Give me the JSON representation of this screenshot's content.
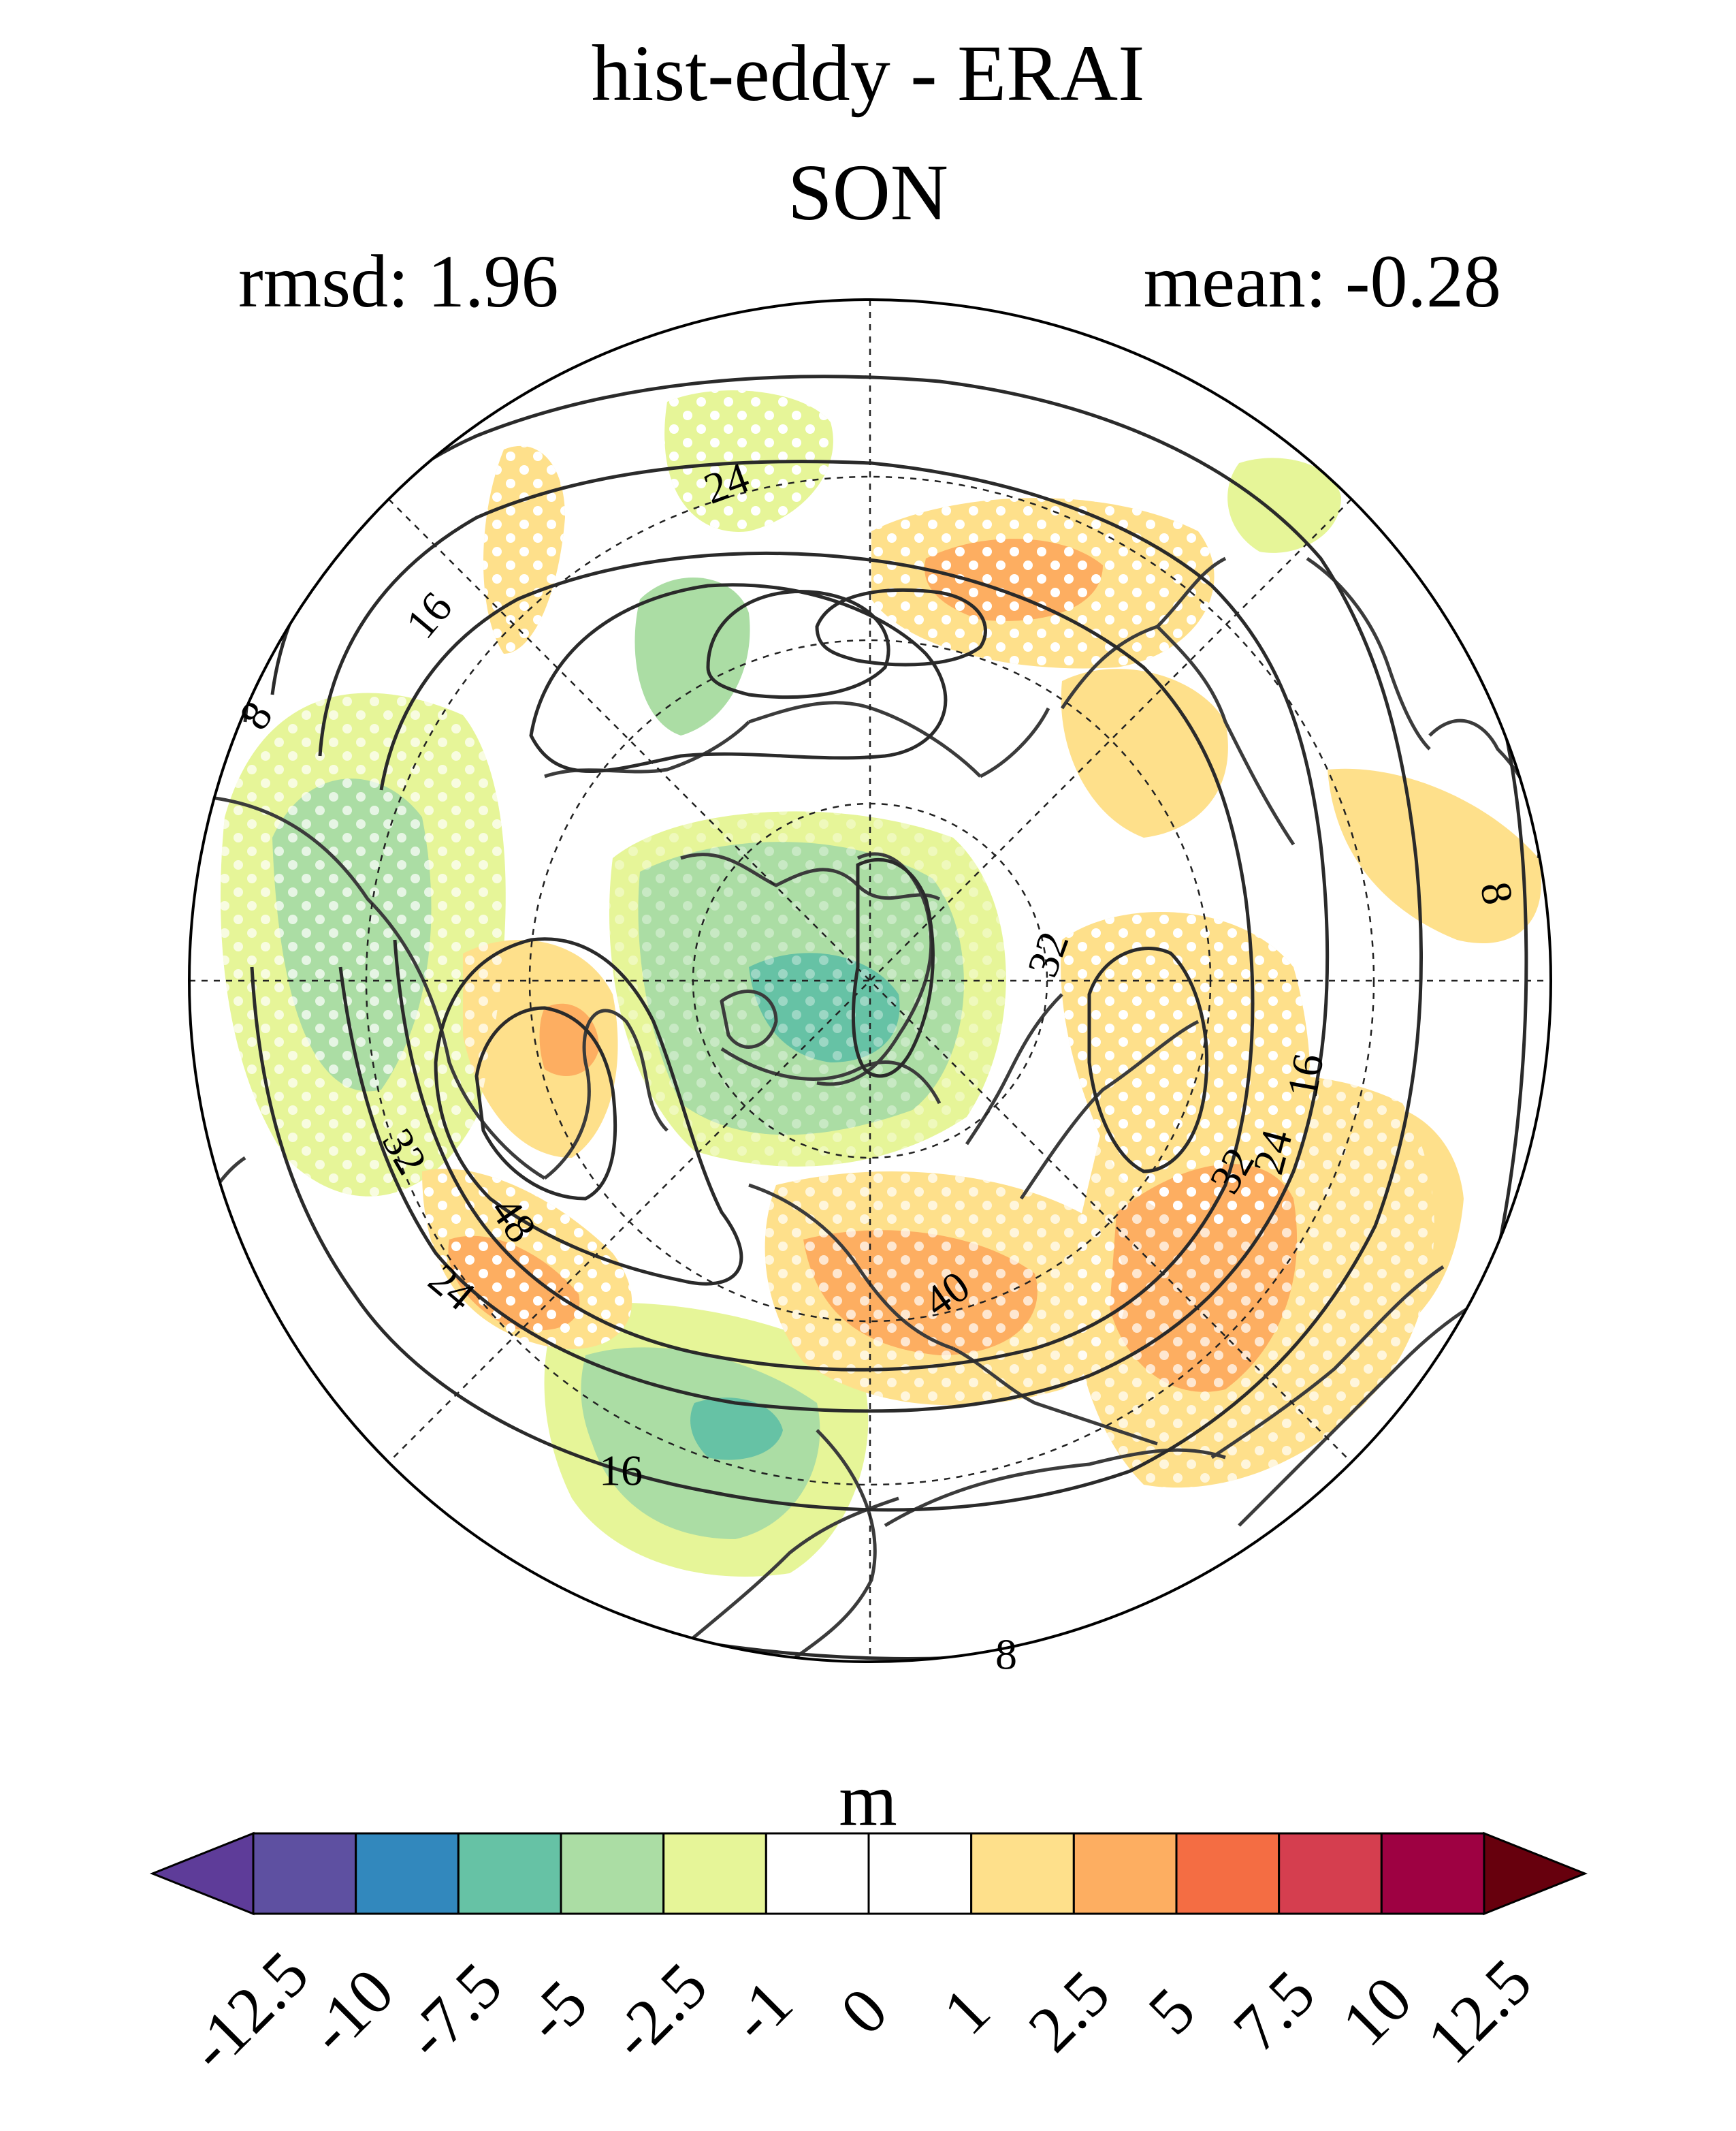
{
  "figure": {
    "title": "hist-eddy - ERAI",
    "season": "SON",
    "rmsd_label": "rmsd: 1.96",
    "mean_label": "mean: -0.28",
    "units": "m"
  },
  "contour_labels": [
    {
      "id": "c8-left",
      "text": "8"
    },
    {
      "id": "c16-left",
      "text": "16"
    },
    {
      "id": "c24-top",
      "text": "24"
    },
    {
      "id": "c8-right",
      "text": "8"
    },
    {
      "id": "c32-right",
      "text": "32"
    },
    {
      "id": "c16-right",
      "text": "16"
    },
    {
      "id": "c24-right",
      "text": "24"
    },
    {
      "id": "c32-right2",
      "text": "32"
    },
    {
      "id": "c32-left",
      "text": "32"
    },
    {
      "id": "c48-left",
      "text": "48"
    },
    {
      "id": "c24-left",
      "text": "24"
    },
    {
      "id": "c40-center",
      "text": "40"
    },
    {
      "id": "c16-bottom",
      "text": "16"
    },
    {
      "id": "c8-bottom",
      "text": "8"
    }
  ],
  "colorbar": {
    "extend": "both",
    "boundaries": [
      "-12.5",
      "-10",
      "-7.5",
      "-5",
      "-2.5",
      "-1",
      "0",
      "1",
      "2.5",
      "5",
      "7.5",
      "10",
      "12.5"
    ],
    "colors": [
      "#5e3c99",
      "#5e50a1",
      "#3288bd",
      "#66c2a5",
      "#abdda4",
      "#e6f598",
      "#ffffff",
      "#ffffff",
      "#fee08b",
      "#fdae61",
      "#f46d43",
      "#d53e4f",
      "#9e0142",
      "#67000d"
    ]
  }
}
